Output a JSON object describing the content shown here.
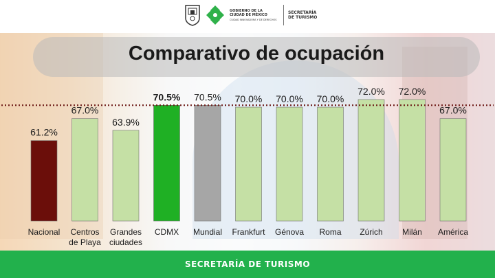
{
  "header": {
    "gob_line1": "GOBIERNO DE LA",
    "gob_line2": "CIUDAD DE MÉXICO",
    "gob_line3": "CIUDAD INNOVADORA Y DE DERECHOS",
    "sect_line1": "SECRETARÍA",
    "sect_line2": "DE TURISMO"
  },
  "footer": {
    "text": "SECRETARÍA DE TURISMO"
  },
  "colors": {
    "nacional": "#6b0e0a",
    "cdmx": "#1fb024",
    "mundial": "#a6a6a6",
    "others": "#c5e0a5",
    "brand_green": "#22b14c",
    "reference_line": "#6b1512"
  },
  "chart_data": {
    "type": "bar",
    "title": "Comparativo de ocupación",
    "categories": [
      [
        "Nacional"
      ],
      [
        "Centros",
        "de Playa"
      ],
      [
        "Grandes",
        "ciudades"
      ],
      [
        "CDMX"
      ],
      [
        "Mundial"
      ],
      [
        "Frankfurt"
      ],
      [
        "Génova"
      ],
      [
        "Roma"
      ],
      [
        "Zúrich"
      ],
      [
        "Milán"
      ],
      [
        "América"
      ]
    ],
    "values": [
      61.2,
      67.0,
      63.9,
      70.5,
      70.5,
      70.0,
      70.0,
      70.0,
      72.0,
      72.0,
      67.0
    ],
    "value_labels": [
      "61.2%",
      "67.0%",
      "63.9%",
      "70.5%",
      "70.5%",
      "70.0%",
      "70.0%",
      "70.0%",
      "72.0%",
      "72.0%",
      "67.0%"
    ],
    "bar_colors": [
      "#6b0e0a",
      "#c5e0a5",
      "#c5e0a5",
      "#1fb024",
      "#a6a6a6",
      "#c5e0a5",
      "#c5e0a5",
      "#c5e0a5",
      "#c5e0a5",
      "#c5e0a5",
      "#c5e0a5"
    ],
    "bold_labels": [
      false,
      false,
      false,
      true,
      false,
      false,
      false,
      false,
      false,
      false,
      false
    ],
    "reference_line_value": 70.5,
    "ylim": [
      40,
      72
    ],
    "xlabel": "",
    "ylabel": "",
    "grid": false,
    "legend": "none"
  }
}
